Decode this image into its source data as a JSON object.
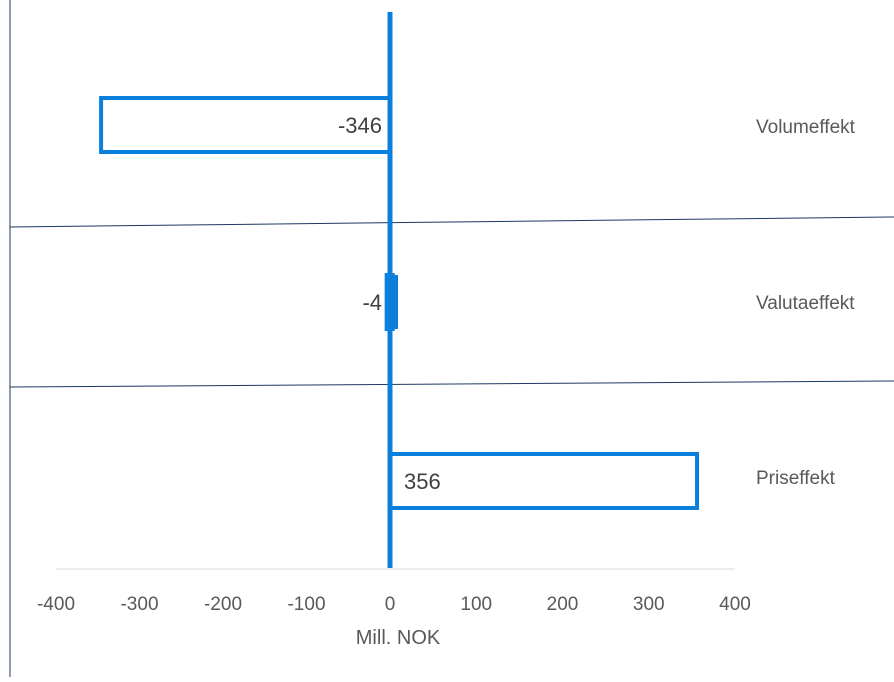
{
  "chart_data": {
    "type": "bar",
    "orientation": "horizontal",
    "categories": [
      "Volumeffekt",
      "Valutaeffekt",
      "Priseffekt"
    ],
    "values": [
      -346,
      -4,
      356
    ],
    "data_labels": [
      "-346",
      "-4",
      "356"
    ],
    "xlabel": "Mill. NOK",
    "xlim": [
      -400,
      400
    ],
    "xticks": [
      -400,
      -300,
      -200,
      -100,
      0,
      100,
      200,
      300,
      400
    ],
    "xtick_labels": [
      "-400",
      "-300",
      "-200",
      "-100",
      "0",
      "100",
      "200",
      "300",
      "400"
    ],
    "grid": false,
    "legend": "none",
    "colors": {
      "bar_outline": "#0a7fdc",
      "zero_line": "#0a7fdc",
      "separator": "#1f3864",
      "text": "#595959",
      "axis": "#d9d9d9"
    }
  }
}
